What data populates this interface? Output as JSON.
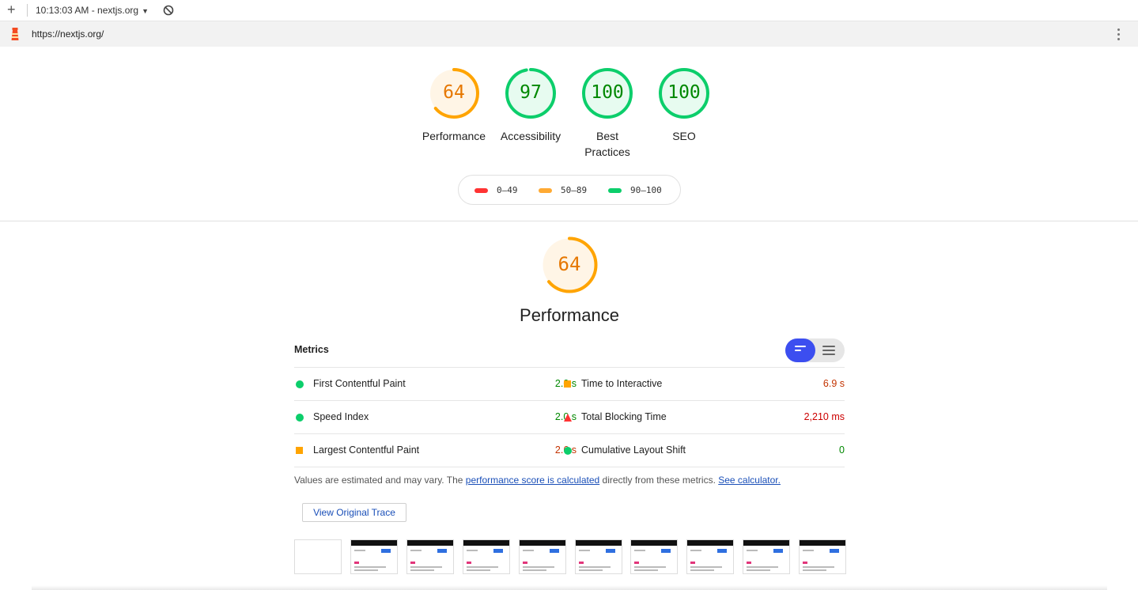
{
  "toolbar": {
    "add_label": "+",
    "report_time": "10:13:03 AM - nextjs.org",
    "caret": "▼",
    "block_icon": "block-icon"
  },
  "urlbar": {
    "url": "https://nextjs.org/",
    "menu_icon": "kebab-menu-icon"
  },
  "categories": [
    {
      "score": "64",
      "label": "Performance",
      "status": "average",
      "fraction": 0.64
    },
    {
      "score": "97",
      "label": "Accessibility",
      "status": "pass",
      "fraction": 0.97
    },
    {
      "score": "100",
      "label": "Best Practices",
      "status": "pass",
      "fraction": 1.0
    },
    {
      "score": "100",
      "label": "SEO",
      "status": "pass",
      "fraction": 1.0
    }
  ],
  "legend": [
    {
      "range": "0–49",
      "color": "#ff3333"
    },
    {
      "range": "50–89",
      "color": "#ffaa33"
    },
    {
      "range": "90–100",
      "color": "#0cce6b"
    }
  ],
  "performance": {
    "score": "64",
    "fraction": 0.64,
    "title": "Performance"
  },
  "metrics": {
    "header": "Metrics",
    "left": [
      {
        "name": "First Contentful Paint",
        "value": "2.0 s",
        "status": "pass"
      },
      {
        "name": "Speed Index",
        "value": "2.0 s",
        "status": "pass"
      },
      {
        "name": "Largest Contentful Paint",
        "value": "2.6 s",
        "status": "average"
      }
    ],
    "right": [
      {
        "name": "Time to Interactive",
        "value": "6.9 s",
        "status": "average"
      },
      {
        "name": "Total Blocking Time",
        "value": "2,210 ms",
        "status": "fail"
      },
      {
        "name": "Cumulative Layout Shift",
        "value": "0",
        "status": "pass"
      }
    ]
  },
  "note": {
    "prefix": "Values are estimated and may vary. The ",
    "link1": "performance score is calculated",
    "middle": " directly from these metrics. ",
    "link2": "See calculator."
  },
  "trace_button": "View Original Trace",
  "colors": {
    "pass": "#0cce6b",
    "pass_text": "#008800",
    "average": "#ffa400",
    "average_text": "#c33300",
    "fail": "#ff3333",
    "fail_text": "#cc0000",
    "toggle_accent": "#3c4ef0"
  }
}
